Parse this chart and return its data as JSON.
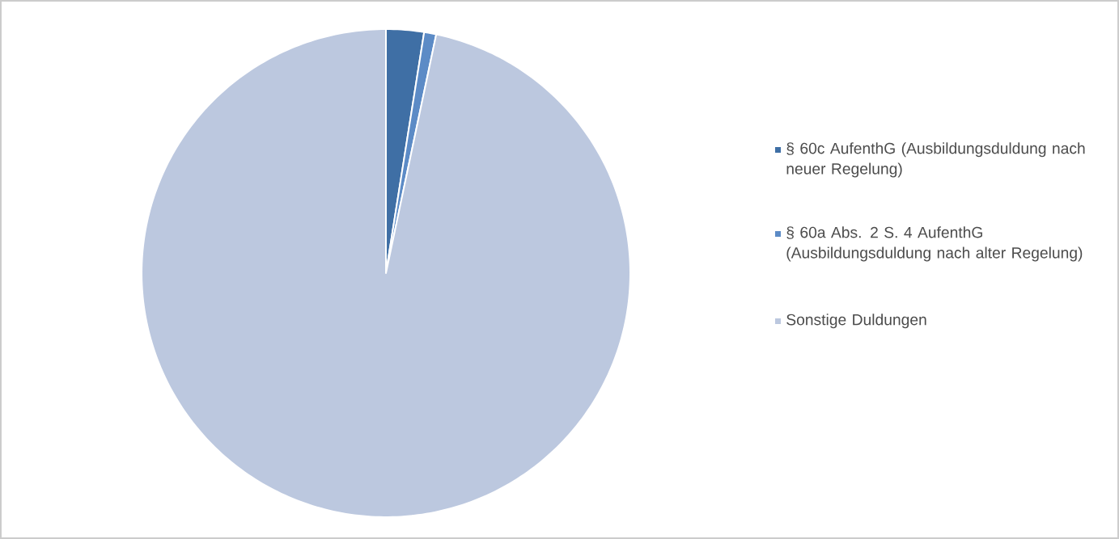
{
  "chart_data": {
    "type": "pie",
    "categories": [
      "§ 60c AufenthG (Ausbildungsduldung nach neuer Regelung)",
      "§ 60a Abs. 2 S. 4 AufenthG (Ausbildungsduldung nach alter Regelung)",
      "Sonstige Duldungen"
    ],
    "values": [
      2.5,
      0.8,
      96.7
    ],
    "colors": [
      "#3f6fa5",
      "#5c8bc6",
      "#bcc8df"
    ],
    "legend": "right"
  }
}
